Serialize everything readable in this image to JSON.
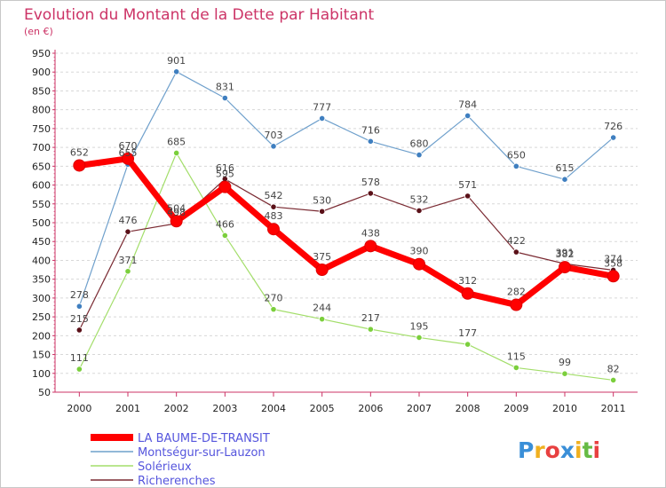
{
  "chart_data": {
    "type": "line",
    "title": "Evolution du Montant de la Dette par Habitant",
    "subtitle": "(en €)",
    "categories": [
      "2000",
      "2001",
      "2002",
      "2003",
      "2004",
      "2005",
      "2006",
      "2007",
      "2008",
      "2009",
      "2010",
      "2011"
    ],
    "ylim": [
      50,
      950
    ],
    "yticks": [
      50,
      100,
      150,
      200,
      250,
      300,
      350,
      400,
      450,
      500,
      550,
      600,
      650,
      700,
      750,
      800,
      850,
      900,
      950
    ],
    "grid": "horizontal-dashed",
    "legend_position": "bottom-left",
    "series": [
      {
        "name": "Montségur-sur-Lauzon",
        "color": "#6fa0cc",
        "marker": "#3f7fc0",
        "width": 1.2,
        "values": [
          278,
          655,
          901,
          831,
          703,
          777,
          716,
          680,
          784,
          650,
          615,
          726
        ],
        "labels": [
          "278",
          "655",
          "901",
          "831",
          "703",
          "777",
          "716",
          "680",
          "784",
          "650",
          "615",
          "726"
        ]
      },
      {
        "name": "Solérieux",
        "color": "#a3de6a",
        "marker": "#7bcf3c",
        "width": 1.2,
        "values": [
          111,
          371,
          685,
          466,
          270,
          244,
          217,
          195,
          177,
          115,
          99,
          82
        ],
        "labels": [
          "111",
          "371",
          "685",
          "466",
          "270",
          "244",
          "217",
          "195",
          "177",
          "115",
          "99",
          "82"
        ]
      },
      {
        "name": "Richerenches",
        "color": "#7a2a32",
        "marker": "#5a1018",
        "width": 1.2,
        "values": [
          215,
          476,
          498,
          616,
          542,
          530,
          578,
          532,
          571,
          422,
          391,
          374
        ],
        "labels": [
          "215",
          "476",
          "498",
          "616",
          "542",
          "530",
          "578",
          "532",
          "571",
          "422",
          "391",
          "374"
        ]
      },
      {
        "name": "LA BAUME-DE-TRANSIT",
        "color": "#ff0000",
        "marker": "#ff0000",
        "width": 7,
        "values": [
          652,
          670,
          504,
          595,
          483,
          375,
          438,
          390,
          312,
          282,
          382,
          358
        ],
        "labels": [
          "652",
          "670",
          "504",
          "595",
          "483",
          "375",
          "438",
          "390",
          "312",
          "282",
          "382",
          "358"
        ]
      }
    ],
    "legend": [
      "LA BAUME-DE-TRANSIT",
      "Montségur-sur-Lauzon",
      "Solérieux",
      "Richerenches"
    ]
  },
  "logo": {
    "text": "Proxiti",
    "letters": [
      "P",
      "r",
      "o",
      "x",
      "i",
      "t",
      "i"
    ],
    "colors": [
      "#3a8fd8",
      "#f0b020",
      "#e84040",
      "#3a8fd8",
      "#f0b020",
      "#66bb44",
      "#e84040"
    ]
  }
}
